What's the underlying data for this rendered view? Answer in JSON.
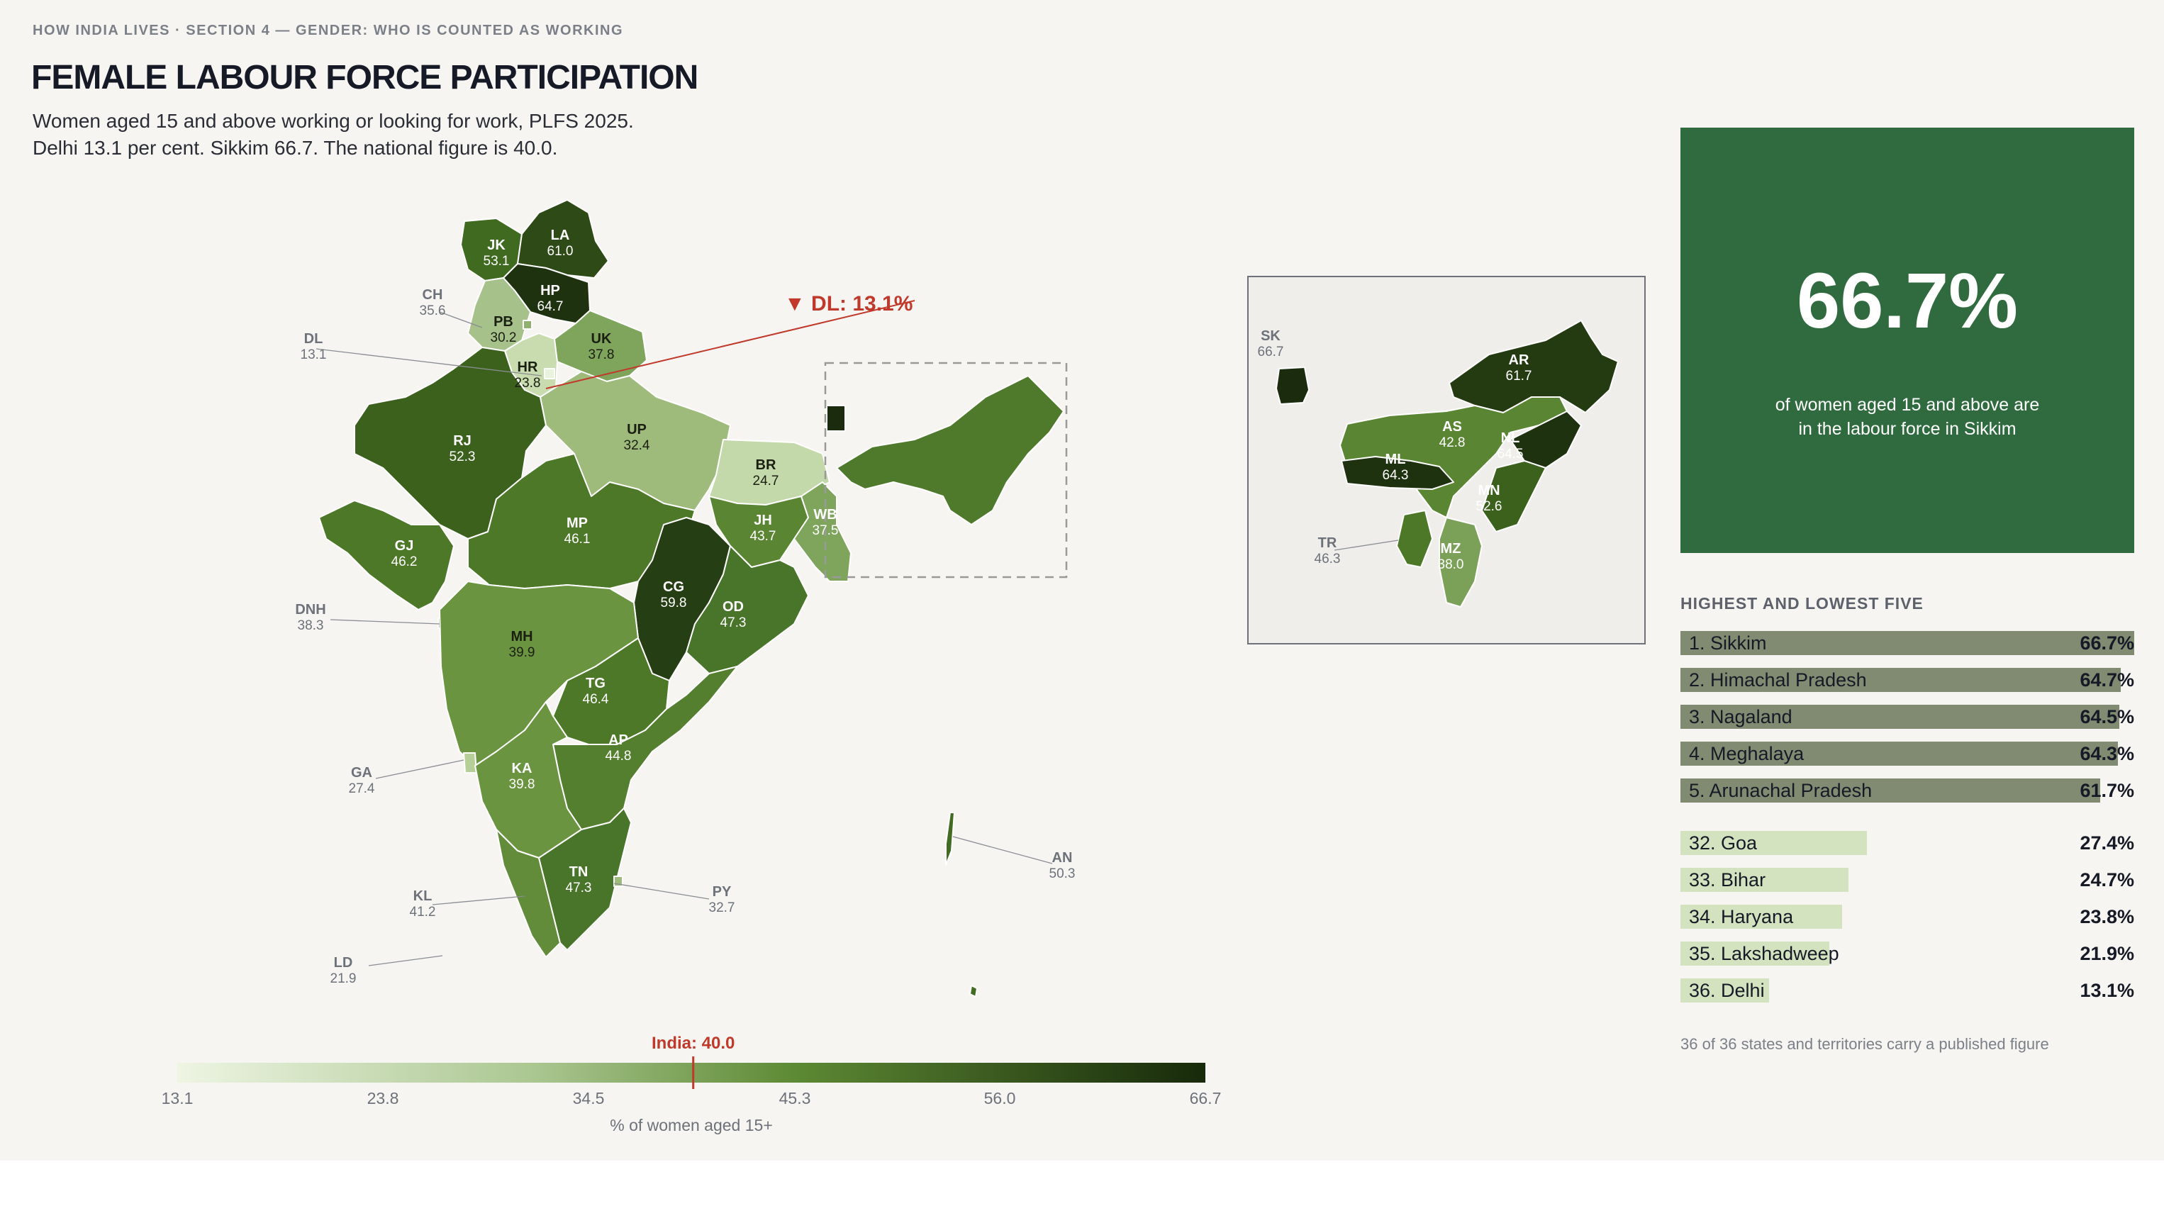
{
  "header": {
    "eyebrow": "HOW INDIA LIVES · SECTION 4 — GENDER: WHO IS COUNTED AS WORKING",
    "title": "FEMALE LABOUR FORCE PARTICIPATION",
    "subtitle_line1": "Women aged 15 and above working or looking for work, PLFS 2025.",
    "subtitle_line2": "Delhi 13.1 per cent. Sikkim 66.7. The national figure is 40.0."
  },
  "map": {
    "callout": "▼ DL: 13.1%",
    "states": [
      {
        "code": "JK",
        "value": "53.1",
        "color": "#3f6a1f"
      },
      {
        "code": "LA",
        "value": "61.0",
        "color": "#2e4a17"
      },
      {
        "code": "HP",
        "value": "64.7",
        "color": "#1e3210"
      },
      {
        "code": "PB",
        "value": "30.2",
        "color": "#a6c28a"
      },
      {
        "code": "CH",
        "value": "35.6",
        "color": "#8fb06e"
      },
      {
        "code": "HR",
        "value": "23.8",
        "color": "#c8dcb0"
      },
      {
        "code": "DL",
        "value": "13.1",
        "color": "#e9f2dc"
      },
      {
        "code": "UK",
        "value": "37.8",
        "color": "#7fa45c"
      },
      {
        "code": "RJ",
        "value": "52.3",
        "color": "#3b611d"
      },
      {
        "code": "UP",
        "value": "32.4",
        "color": "#9ebb7c"
      },
      {
        "code": "BR",
        "value": "24.7",
        "color": "#c4d9aa"
      },
      {
        "code": "GJ",
        "value": "46.2",
        "color": "#4c7828"
      },
      {
        "code": "MP",
        "value": "46.1",
        "color": "#4c7828"
      },
      {
        "code": "JH",
        "value": "43.7",
        "color": "#5a8532"
      },
      {
        "code": "WB",
        "value": "37.5",
        "color": "#7fa45c"
      },
      {
        "code": "CG",
        "value": "59.8",
        "color": "#263e13"
      },
      {
        "code": "OD",
        "value": "47.3",
        "color": "#49752a"
      },
      {
        "code": "DNH",
        "value": "38.3",
        "color": "#7ba058"
      },
      {
        "code": "MH",
        "value": "39.9",
        "color": "#6b9440"
      },
      {
        "code": "TG",
        "value": "46.4",
        "color": "#4c7828"
      },
      {
        "code": "AP",
        "value": "44.8",
        "color": "#547f2e"
      },
      {
        "code": "GA",
        "value": "27.4",
        "color": "#b6cf99"
      },
      {
        "code": "KA",
        "value": "39.8",
        "color": "#6b9440"
      },
      {
        "code": "KL",
        "value": "41.2",
        "color": "#628c3a"
      },
      {
        "code": "TN",
        "value": "47.3",
        "color": "#49752a"
      },
      {
        "code": "PY",
        "value": "32.7",
        "color": "#9ebb7c"
      },
      {
        "code": "LD",
        "value": "21.9",
        "color": "#d2e3bd"
      },
      {
        "code": "AN",
        "value": "50.3",
        "color": "#416c22"
      }
    ]
  },
  "inset": {
    "states": [
      {
        "code": "SK",
        "value": "66.7",
        "color": "#1a2c0d"
      },
      {
        "code": "AR",
        "value": "61.7",
        "color": "#243a11"
      },
      {
        "code": "AS",
        "value": "42.8",
        "color": "#5a8532"
      },
      {
        "code": "NL",
        "value": "64.5",
        "color": "#1e3210"
      },
      {
        "code": "ML",
        "value": "64.3",
        "color": "#1e3210"
      },
      {
        "code": "MN",
        "value": "52.6",
        "color": "#3b611d"
      },
      {
        "code": "TR",
        "value": "46.3",
        "color": "#4c7828"
      },
      {
        "code": "MZ",
        "value": "38.0",
        "color": "#7ba058"
      }
    ]
  },
  "hero": {
    "value": "66.7%",
    "caption_line1": "of women aged 15 and above are",
    "caption_line2": "in the labour force in Sikkim"
  },
  "ranking": {
    "heading": "HIGHEST AND LOWEST FIVE",
    "top": [
      {
        "label": "1. Sikkim",
        "value": "66.7%",
        "share": 1.0
      },
      {
        "label": "2. Himachal Pradesh",
        "value": "64.7%",
        "share": 0.97
      },
      {
        "label": "3. Nagaland",
        "value": "64.5%",
        "share": 0.967
      },
      {
        "label": "4. Meghalaya",
        "value": "64.3%",
        "share": 0.964
      },
      {
        "label": "5. Arunachal Pradesh",
        "value": "61.7%",
        "share": 0.925
      }
    ],
    "bottom": [
      {
        "label": "32. Goa",
        "value": "27.4%",
        "share": 0.411
      },
      {
        "label": "33. Bihar",
        "value": "24.7%",
        "share": 0.37
      },
      {
        "label": "34. Haryana",
        "value": "23.8%",
        "share": 0.357
      },
      {
        "label": "35. Lakshadweep",
        "value": "21.9%",
        "share": 0.328
      },
      {
        "label": "36. Delhi",
        "value": "13.1%",
        "share": 0.196
      }
    ],
    "footnote": "36 of 36 states and territories carry a published figure"
  },
  "legend": {
    "marker_label": "India: 40.0",
    "marker_value": 40.0,
    "min": 13.1,
    "max": 66.7,
    "ticks": [
      "13.1",
      "23.8",
      "34.5",
      "45.3",
      "56.0",
      "66.7"
    ],
    "caption": "% of women aged 15+"
  },
  "colors": {
    "background": "#f6f5f1",
    "hero": "#2f6b3f",
    "top_bar": "#818b72",
    "bottom_bar": "#d3e2bf",
    "accent": "#c0392b",
    "ramp_light": "#eef5e3",
    "ramp_dark": "#17290a"
  }
}
